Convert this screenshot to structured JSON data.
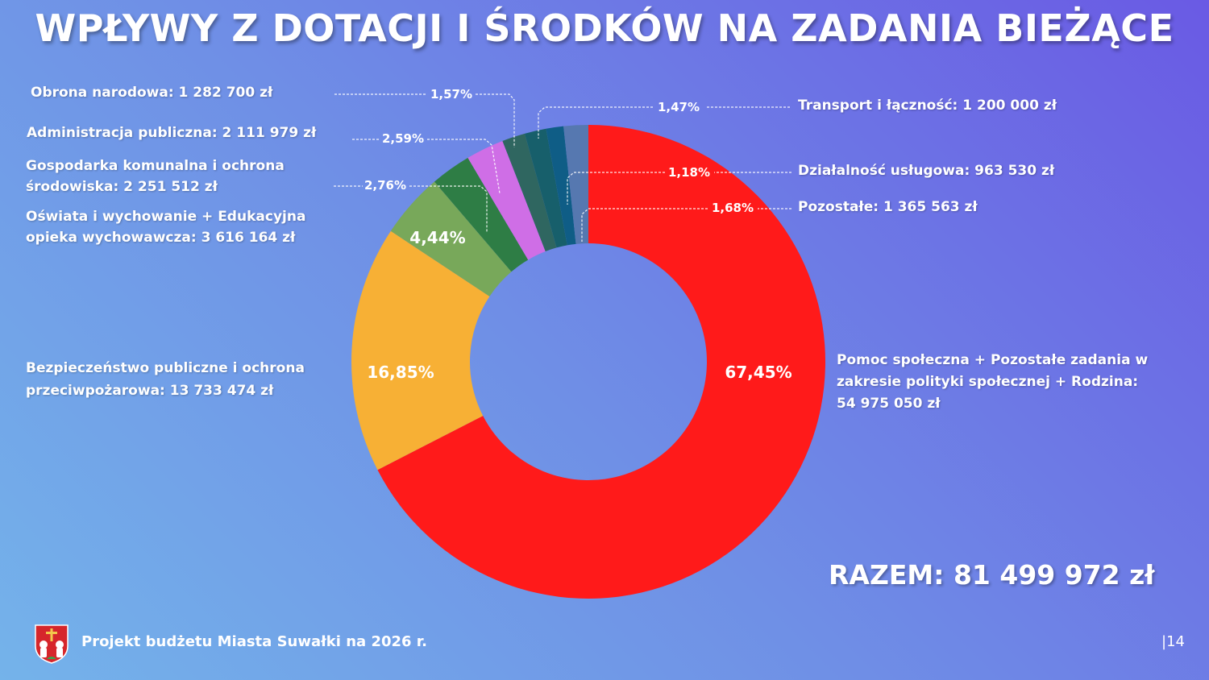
{
  "title": "WPŁYWY Z DOTACJI I ŚRODKÓW NA ZADANIA BIEŻĄCE",
  "total": "RAZEM: 81 499 972 zł",
  "footer": "Projekt budżetu Miasta Suwałki na 2026 r.",
  "page_number": "|14",
  "labels": {
    "pomoc": [
      "Pomoc społeczna + Pozostałe zadania w",
      "zakresie polityki społecznej + Rodzina:",
      "54 975 050 zł"
    ],
    "bezpieczenstwo": [
      "Bezpieczeństwo publiczne i ochrona",
      "przeciwpożarowa: 13 733 474 zł"
    ],
    "oswiata": [
      "Oświata  i  wychowanie  +  Edukacyjna",
      "opieka wychowawcza: 3 616 164 zł"
    ],
    "gospodarka": [
      "Gospodarka komunalna i ochrona",
      "środowiska: 2 251 512 zł"
    ],
    "administracja": "Administracja publiczna: 2 111 979 zł",
    "obrona": "Obrona narodowa: 1 282 700 zł",
    "transport": "Transport i łączność: 1 200 000 zł",
    "dzialalnosc": "Działalność usługowa: 963 530 zł",
    "pozostale": "Pozostałe: 1 365 563 zł"
  },
  "chart_data": {
    "type": "pie",
    "variant": "donut",
    "slices": [
      {
        "label": "Pomoc społeczna + Pozostałe zadania w zakresie polityki społecznej + Rodzina",
        "value": 54975050,
        "percent": "67,45%",
        "color": "#ff1a1a"
      },
      {
        "label": "Bezpieczeństwo publiczne i ochrona przeciwpożarowa",
        "value": 13733474,
        "percent": "16,85%",
        "color": "#f7b035"
      },
      {
        "label": "Oświata i wychowanie + Edukacyjna opieka wychowawcza",
        "value": 3616164,
        "percent": "4,44%",
        "color": "#78a85a"
      },
      {
        "label": "Gospodarka komunalna i ochrona środowiska",
        "value": 2251512,
        "percent": "2,76%",
        "color": "#2e7d45"
      },
      {
        "label": "Administracja publiczna",
        "value": 2111979,
        "percent": "2,59%",
        "color": "#cf6ee6"
      },
      {
        "label": "Obrona narodowa",
        "value": 1282700,
        "percent": "1,57%",
        "color": "#2f6660"
      },
      {
        "label": "Transport i łączność",
        "value": 1200000,
        "percent": "1,47%",
        "color": "#175f6b"
      },
      {
        "label": "Działalność usługowa",
        "value": 963530,
        "percent": "1,18%",
        "color": "#0f5d86"
      },
      {
        "label": "Pozostałe",
        "value": 1365563,
        "percent": "1,68%",
        "color": "#5678b0"
      }
    ]
  }
}
